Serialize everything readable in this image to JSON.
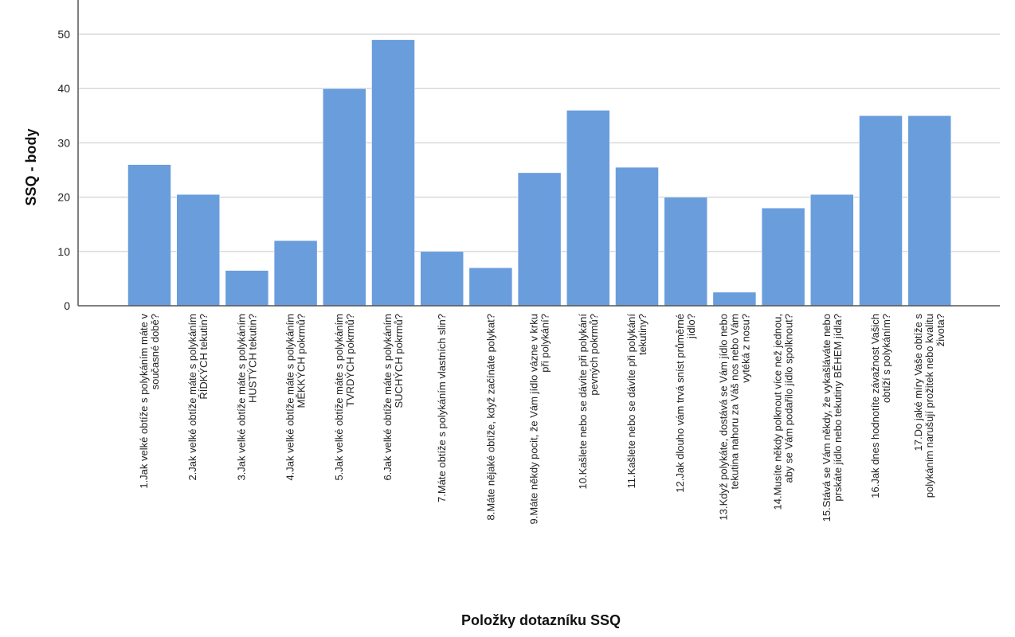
{
  "chart_data": {
    "type": "bar",
    "xlabel": "Položky dotazníku SSQ",
    "ylabel": "SSQ - body",
    "ylim": [
      0,
      55
    ],
    "yticks": [
      0,
      10,
      20,
      30,
      40,
      50
    ],
    "grid": true,
    "bar_color": "#6a9ddc",
    "categories": [
      [
        "1.Jak velké obtíže s polykáním máte v",
        "současné době?"
      ],
      [
        "2.Jak velké obtíže máte s polykáním",
        "ŘÍDKÝCH tekutin?"
      ],
      [
        "3.Jak velké obtíže máte s polykáním",
        "HUSTÝCH tekutin?"
      ],
      [
        "4.Jak velké obtíže máte s polykáním",
        "MĚKKÝCH pokrmů?"
      ],
      [
        "5.Jak velké obtíže máte s polykáním",
        "TVRDÝCH pokrmů?"
      ],
      [
        "6.Jak velké obtíže máte s polykáním",
        "SUCHÝCH pokrmů?"
      ],
      [
        "7.Máte obtíže s polykáním vlastních slin?"
      ],
      [
        "8.Máte nějaké obtíže, když začínáte polykat?"
      ],
      [
        "9.Máte někdy pocit, že Vám jídlo vázne v krku",
        "při polykání?"
      ],
      [
        "10.Kašlete nebo se dávíte při polykání",
        "pevných pokrmů?"
      ],
      [
        "11.Kašlete nebo se dávíte při polykání",
        "tekutiny?"
      ],
      [
        "12.Jak dlouho vám trvá sníst průměrné",
        "jídlo?"
      ],
      [
        "13.Když polykáte, dostává se Vám jídlo nebo",
        "tekutina nahoru za Váš nos nebo Vám",
        "vytéká z nosu?"
      ],
      [
        "14.Musíte někdy polknout více než jednou,",
        "aby se Vám podařilo jídlo spolknout?"
      ],
      [
        "15.Stává se Vám někdy, že vykašláváte nebo",
        "prskáte jídlo nebo tekutiny BĚHEM jídla?"
      ],
      [
        "16.Jak dnes hodnotíte závažnost Vašich",
        "obtíží s polykáním?"
      ],
      [
        "17.Do jaké míry Vaše obtíže s",
        "polykáním narušují prožitek nebo kvalitu",
        "života?"
      ]
    ],
    "values": [
      26,
      20.5,
      6.5,
      12,
      40,
      49,
      10,
      7,
      24.5,
      36,
      25.5,
      20,
      2.5,
      18,
      20.5,
      35,
      35
    ]
  }
}
